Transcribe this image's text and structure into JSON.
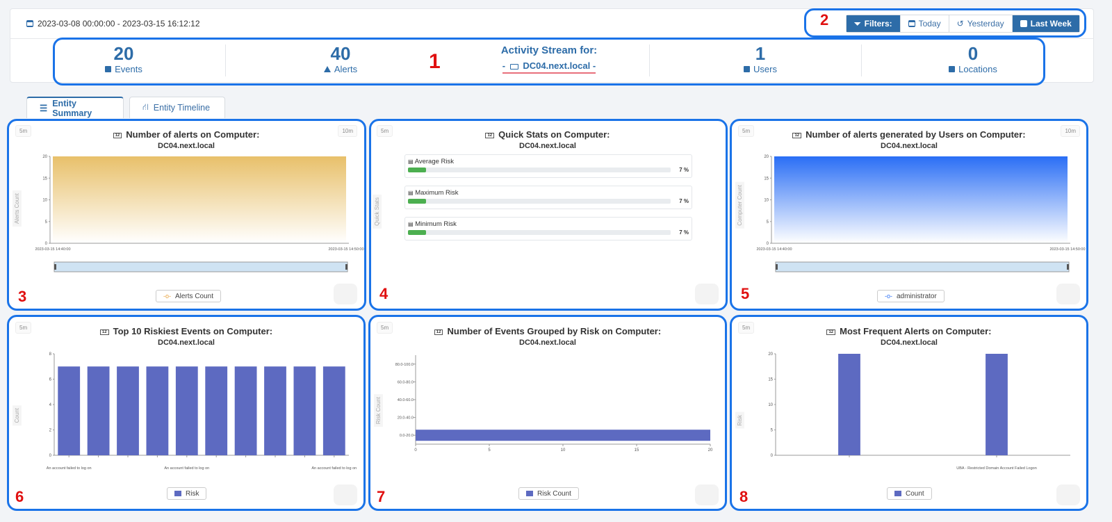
{
  "header": {
    "date_range": "2023-03-08 00:00:00 - 2023-03-15 16:12:12",
    "filters": [
      {
        "label": "Filters:",
        "icon": "filter-icon"
      },
      {
        "label": "Today",
        "icon": "calendar-icon"
      },
      {
        "label": "Yesterday",
        "icon": "history-icon"
      },
      {
        "label": "Last Week",
        "icon": "calendar-icon"
      }
    ]
  },
  "stats": [
    {
      "value": "20",
      "label": "Events"
    },
    {
      "value": "40",
      "label": "Alerts"
    },
    {
      "value": "1",
      "label": "Users"
    },
    {
      "value": "0",
      "label": "Locations"
    }
  ],
  "activity": {
    "title": "Activity Stream for:",
    "host_prefix": "-",
    "host": "DC04.next.local",
    "host_suffix": "-"
  },
  "tabs": [
    {
      "label": "Entity Summary"
    },
    {
      "label": "Entity Timeline"
    }
  ],
  "annotations": [
    "1",
    "2",
    "3",
    "4",
    "5",
    "6",
    "7",
    "8"
  ],
  "panels": {
    "p3": {
      "title": "Number of alerts on Computer:",
      "subtitle": "DC04.next.local",
      "pill_left": "5m",
      "pill_right": "10m",
      "ylabel": "Alerts Count",
      "legend": "Alerts Count"
    },
    "p4": {
      "title": "Quick Stats on Computer:",
      "subtitle": "DC04.next.local",
      "pill_left": "5m",
      "ylabel": "Quick Stats",
      "rows": [
        {
          "label": "Average Risk",
          "value": "7 %",
          "pct": 7
        },
        {
          "label": "Maximum Risk",
          "value": "7 %",
          "pct": 7
        },
        {
          "label": "Minimum Risk",
          "value": "7 %",
          "pct": 7
        }
      ]
    },
    "p5": {
      "title": "Number of alerts generated by Users on Computer:",
      "subtitle": "DC04.next.local",
      "pill_left": "5m",
      "pill_right": "10m",
      "ylabel": "Computer Count",
      "legend": "administrator"
    },
    "p6": {
      "title": "Top 10 Riskiest Events on Computer:",
      "subtitle": "DC04.next.local",
      "pill_left": "5m",
      "ylabel": "Count",
      "legend": "Risk"
    },
    "p7": {
      "title": "Number of Events Grouped by Risk on Computer:",
      "subtitle": "DC04.next.local",
      "pill_left": "5m",
      "ylabel": "Risk Count",
      "legend": "Risk Count"
    },
    "p8": {
      "title": "Most Frequent Alerts on Computer:",
      "subtitle": "DC04.next.local",
      "pill_left": "5m",
      "ylabel": "Risk",
      "legend": "Count"
    }
  },
  "chart_data": [
    {
      "type": "area",
      "x": [
        "2023-03-15 14:40:00",
        "2023-03-15 14:50:00"
      ],
      "series": [
        {
          "name": "Alerts Count",
          "values": [
            20,
            20
          ]
        }
      ],
      "ylim": [
        0,
        20
      ],
      "yticks": [
        0,
        5,
        10,
        15,
        20
      ],
      "color": "#e8c06a"
    },
    {
      "type": "area",
      "x": [
        "2023-03-15 14:40:00",
        "2023-03-15 14:50:00"
      ],
      "series": [
        {
          "name": "administrator",
          "values": [
            20,
            20
          ]
        }
      ],
      "ylim": [
        0,
        20
      ],
      "yticks": [
        0,
        5,
        10,
        15,
        20
      ],
      "color": "#2a6ef5"
    },
    {
      "type": "bar",
      "categories": [
        "An account failed to log on",
        "",
        "",
        "",
        "An account failed to log on",
        "",
        "",
        "",
        "",
        "An account failed to log on"
      ],
      "values": [
        7,
        7,
        7,
        7,
        7,
        7,
        7,
        7,
        7,
        7
      ],
      "ylim": [
        0,
        8
      ],
      "yticks": [
        0,
        2,
        4,
        6,
        8
      ],
      "series": [
        {
          "name": "Risk"
        }
      ],
      "color": "#5d6ac1"
    },
    {
      "type": "bar",
      "orientation": "horizontal",
      "categories": [
        "0.0-20.0",
        "20.0-40.0",
        "40.0-60.0",
        "60.0-80.0",
        "80.0-100.0"
      ],
      "values": [
        20,
        0,
        0,
        0,
        0
      ],
      "xlim": [
        0,
        20
      ],
      "xticks": [
        0,
        5,
        10,
        15,
        20
      ],
      "series": [
        {
          "name": "Risk Count"
        }
      ],
      "color": "#5d6ac1"
    },
    {
      "type": "bar",
      "categories": [
        "",
        "UBA - Restricted Domain Account Failed Logon"
      ],
      "values": [
        20,
        20
      ],
      "ylim": [
        0,
        20
      ],
      "yticks": [
        0,
        5,
        10,
        15,
        20
      ],
      "series": [
        {
          "name": "Count"
        }
      ],
      "color": "#5d6ac1"
    }
  ]
}
